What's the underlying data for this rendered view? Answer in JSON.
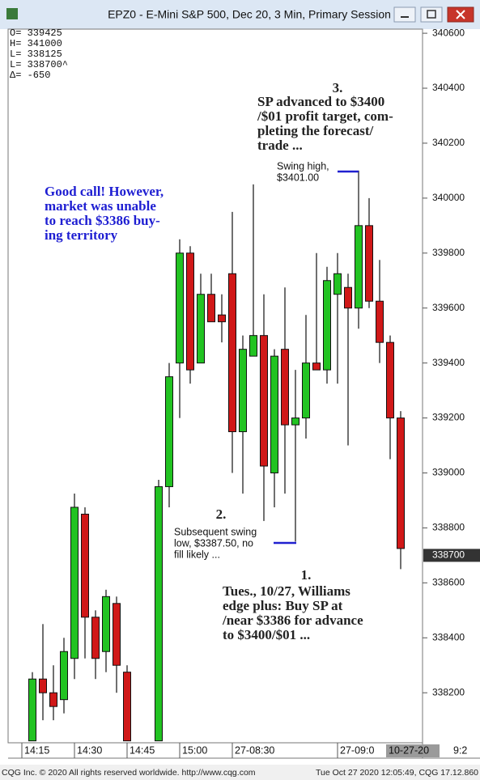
{
  "window_title": "EPZ0 - E-Mini S&P 500, Dec 20, 3 Min, Primary Session",
  "info": [
    "O= 339425",
    "H= 341000",
    "L= 338125",
    "L= 338700^",
    "Δ=    -650"
  ],
  "chart_data": {
    "type": "candlestick",
    "categories": [
      "14:15",
      null,
      null,
      null,
      null,
      "14:30",
      null,
      null,
      null,
      null,
      "14:45",
      null,
      null,
      null,
      null,
      "15:00",
      null,
      null,
      null,
      null,
      "27-08:30",
      null,
      null,
      null,
      null,
      null,
      null,
      null,
      null,
      null,
      "27-09:0",
      null,
      null,
      null,
      null,
      null,
      null
    ],
    "open": [
      null,
      338025,
      338250,
      338200,
      338175,
      338325,
      338850,
      338475,
      338350,
      338525,
      338275,
      null,
      null,
      338025,
      338950,
      339400,
      339800,
      339400,
      339650,
      339575,
      339725,
      339150,
      339425,
      339500,
      339000,
      339450,
      339175,
      339200,
      339400,
      339375,
      339650,
      339675,
      339600,
      339900,
      339625,
      339475,
      339200
    ],
    "high": [
      null,
      338275,
      338450,
      338300,
      338400,
      338925,
      338875,
      338500,
      338575,
      338550,
      338300,
      null,
      null,
      338975,
      339400,
      339850,
      339825,
      339725,
      339725,
      339650,
      339950,
      339500,
      340050,
      339650,
      339450,
      339675,
      339375,
      339575,
      339800,
      339750,
      339800,
      339725,
      340100,
      340000,
      339775,
      339500,
      339225
    ],
    "low": [
      null,
      338025,
      338100,
      338100,
      338125,
      338250,
      338325,
      338250,
      338275,
      338200,
      338025,
      null,
      null,
      338025,
      338875,
      339200,
      339325,
      339400,
      339550,
      339475,
      339000,
      338925,
      339425,
      338825,
      338875,
      338925,
      338750,
      339125,
      339375,
      339325,
      339325,
      339100,
      339525,
      339600,
      339400,
      339050,
      338650
    ],
    "close": [
      null,
      338250,
      338200,
      338150,
      338350,
      338875,
      338475,
      338325,
      338550,
      338300,
      338025,
      null,
      null,
      338950,
      339350,
      339800,
      339375,
      339650,
      339550,
      339550,
      339150,
      339450,
      339500,
      339025,
      339425,
      339175,
      339200,
      339400,
      339375,
      339700,
      339725,
      339600,
      339900,
      339625,
      339475,
      339200,
      338725
    ],
    "up_color": "#22c322",
    "down_color": "#d01818",
    "ylim": [
      338018,
      340615
    ],
    "yticks": [
      338200,
      338400,
      338600,
      338800,
      339000,
      339200,
      339400,
      339600,
      339800,
      340000,
      340200,
      340400,
      340600
    ],
    "last_price": 338700,
    "cursor_labels": [
      "10-27-20",
      "9:2"
    ],
    "annotations": [
      {
        "number": "3.",
        "lines": [
          "SP advanced to $3400",
          "/$01 profit target, com-",
          "pleting the forecast/",
          "trade ..."
        ]
      },
      {
        "lines": [
          "Swing high,",
          "$3401.00"
        ]
      },
      {
        "lines": [
          "Good call! However,",
          "market was unable",
          "to reach $3386 buy-",
          "ing territory"
        ]
      },
      {
        "number": "2.",
        "lines": [
          "Subsequent swing",
          "low, $3387.50, no",
          "fill likely ..."
        ]
      },
      {
        "number": "1.",
        "lines": [
          "Tues., 10/27, Williams",
          "edge plus: Buy SP at",
          "/near $3386 for advance",
          "to $3400/$01 ..."
        ]
      }
    ]
  },
  "footer": {
    "left": "CQG Inc. © 2020 All rights reserved worldwide. http://www.cqg.com",
    "right": "Tue Oct 27 2020 12:05:49, CQG 17.12.860"
  }
}
